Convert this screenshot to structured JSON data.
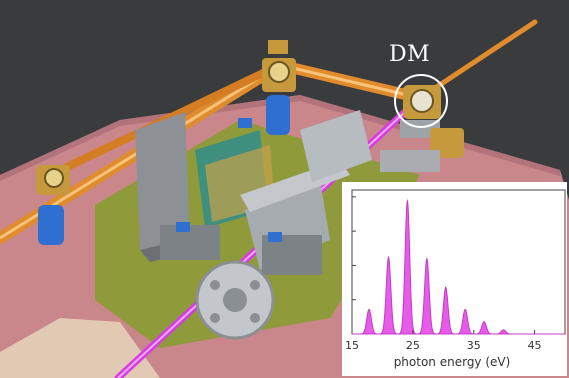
{
  "scene": {
    "callout_label": "DM",
    "colors": {
      "background": "#3a3b3d",
      "optical_table": "#c9868b",
      "breadboard": "#8f9a3a",
      "orange_beam": "#e08b2c",
      "magenta_beam": "#d43ee0"
    }
  },
  "chart_data": {
    "type": "area",
    "title": "",
    "xlabel": "photon energy (eV)",
    "ylabel": "",
    "xlim": [
      15,
      50
    ],
    "ylim": [
      0,
      1.05
    ],
    "xticks": [
      "15",
      "25",
      "35",
      "45"
    ],
    "grid": false,
    "fill_color": "#e65ce8",
    "peaks": [
      {
        "x": 17.8,
        "y": 0.18
      },
      {
        "x": 21.0,
        "y": 0.56
      },
      {
        "x": 24.1,
        "y": 0.97
      },
      {
        "x": 27.3,
        "y": 0.55
      },
      {
        "x": 30.4,
        "y": 0.34
      },
      {
        "x": 33.6,
        "y": 0.18
      },
      {
        "x": 36.7,
        "y": 0.09
      },
      {
        "x": 39.9,
        "y": 0.03
      }
    ]
  }
}
